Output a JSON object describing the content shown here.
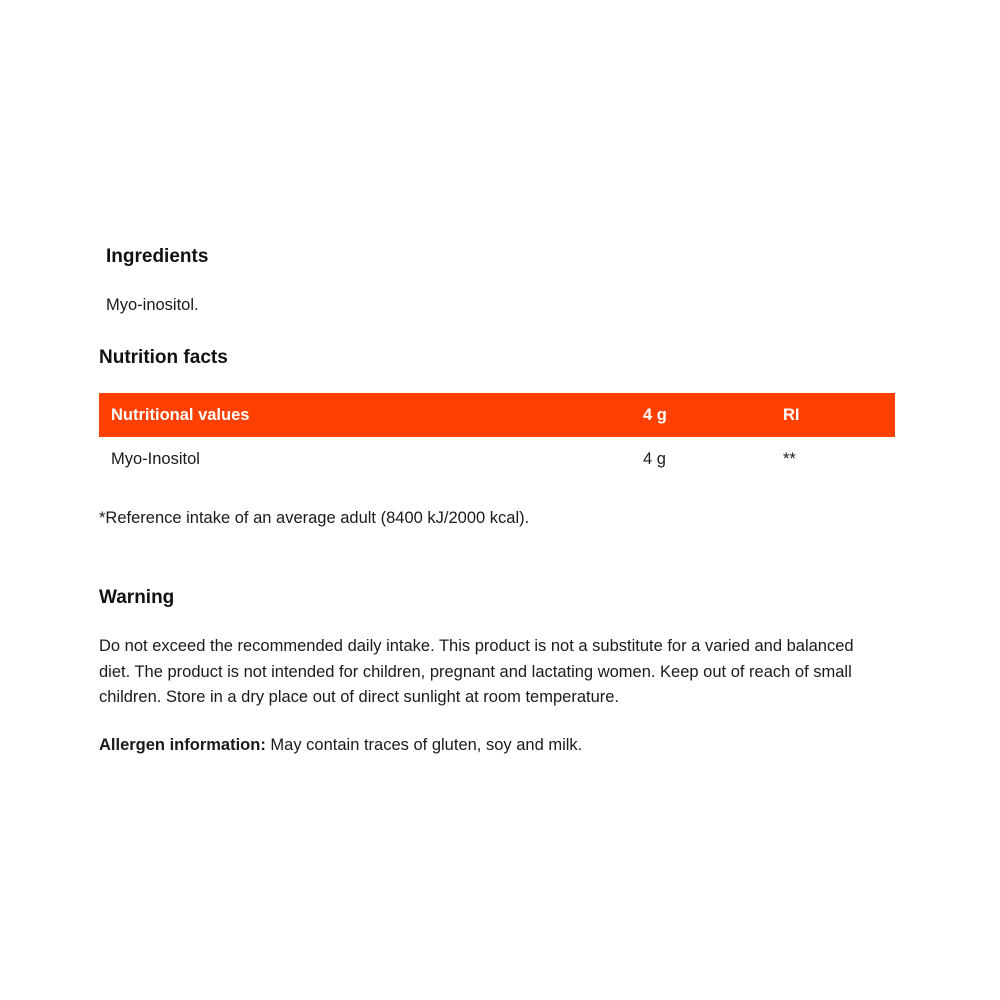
{
  "ingredients": {
    "heading": "Ingredients",
    "text": "Myo-inositol."
  },
  "nutrition": {
    "heading": "Nutrition facts",
    "accent_color": "#ff4000",
    "columns": [
      "Nutritional values",
      "4 g",
      "RI"
    ],
    "rows": [
      [
        "Myo-Inositol",
        "4 g",
        "**"
      ]
    ],
    "footnote": "*Reference intake of an average adult (8400 kJ/2000 kcal)."
  },
  "warning": {
    "heading": "Warning",
    "text": "Do not exceed the recommended daily intake. This product is not a substitute for a varied and balanced diet. The product is not intended for children, pregnant and lactating women. Keep out of reach of small children. Store in a dry place out of direct sunlight at room temperature.",
    "allergen_label": "Allergen information:",
    "allergen_text": " May contain traces of gluten, soy and milk."
  }
}
